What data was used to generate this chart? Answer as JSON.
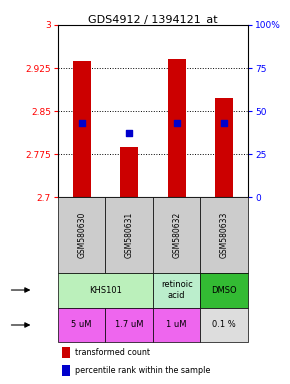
{
  "title": "GDS4912 / 1394121_at",
  "samples": [
    "GSM580630",
    "GSM580631",
    "GSM580632",
    "GSM580633"
  ],
  "bar_values": [
    2.937,
    2.787,
    2.94,
    2.872
  ],
  "bar_bottom": 2.7,
  "percentile_values": [
    43,
    37,
    43,
    43
  ],
  "ylim_left": [
    2.7,
    3.0
  ],
  "yticks_left": [
    2.7,
    2.775,
    2.85,
    2.925,
    3.0
  ],
  "ytick_labels_left": [
    "2.7",
    "2.775",
    "2.85",
    "2.925",
    "3"
  ],
  "ylim_right": [
    0,
    100
  ],
  "yticks_right": [
    0,
    25,
    50,
    75,
    100
  ],
  "ytick_labels_right": [
    "0",
    "25",
    "50",
    "75",
    "100%"
  ],
  "bar_color": "#cc0000",
  "dot_color": "#0000cc",
  "agent_data": [
    {
      "cols": [
        0,
        1
      ],
      "text": "KHS101",
      "color": "#bbf0bb"
    },
    {
      "cols": [
        2,
        2
      ],
      "text": "retinoic\nacid",
      "color": "#bbeecc"
    },
    {
      "cols": [
        3,
        3
      ],
      "text": "DMSO",
      "color": "#33bb33"
    }
  ],
  "dose_labels": [
    "5 uM",
    "1.7 uM",
    "1 uM",
    "0.1 %"
  ],
  "dose_bg_colors": [
    "#ee66ee",
    "#ee66ee",
    "#ee66ee",
    "#dddddd"
  ],
  "sample_bg_color": "#cccccc",
  "legend_bar_color": "#cc0000",
  "legend_dot_color": "#0000cc",
  "legend_text1": "transformed count",
  "legend_text2": "percentile rank within the sample"
}
